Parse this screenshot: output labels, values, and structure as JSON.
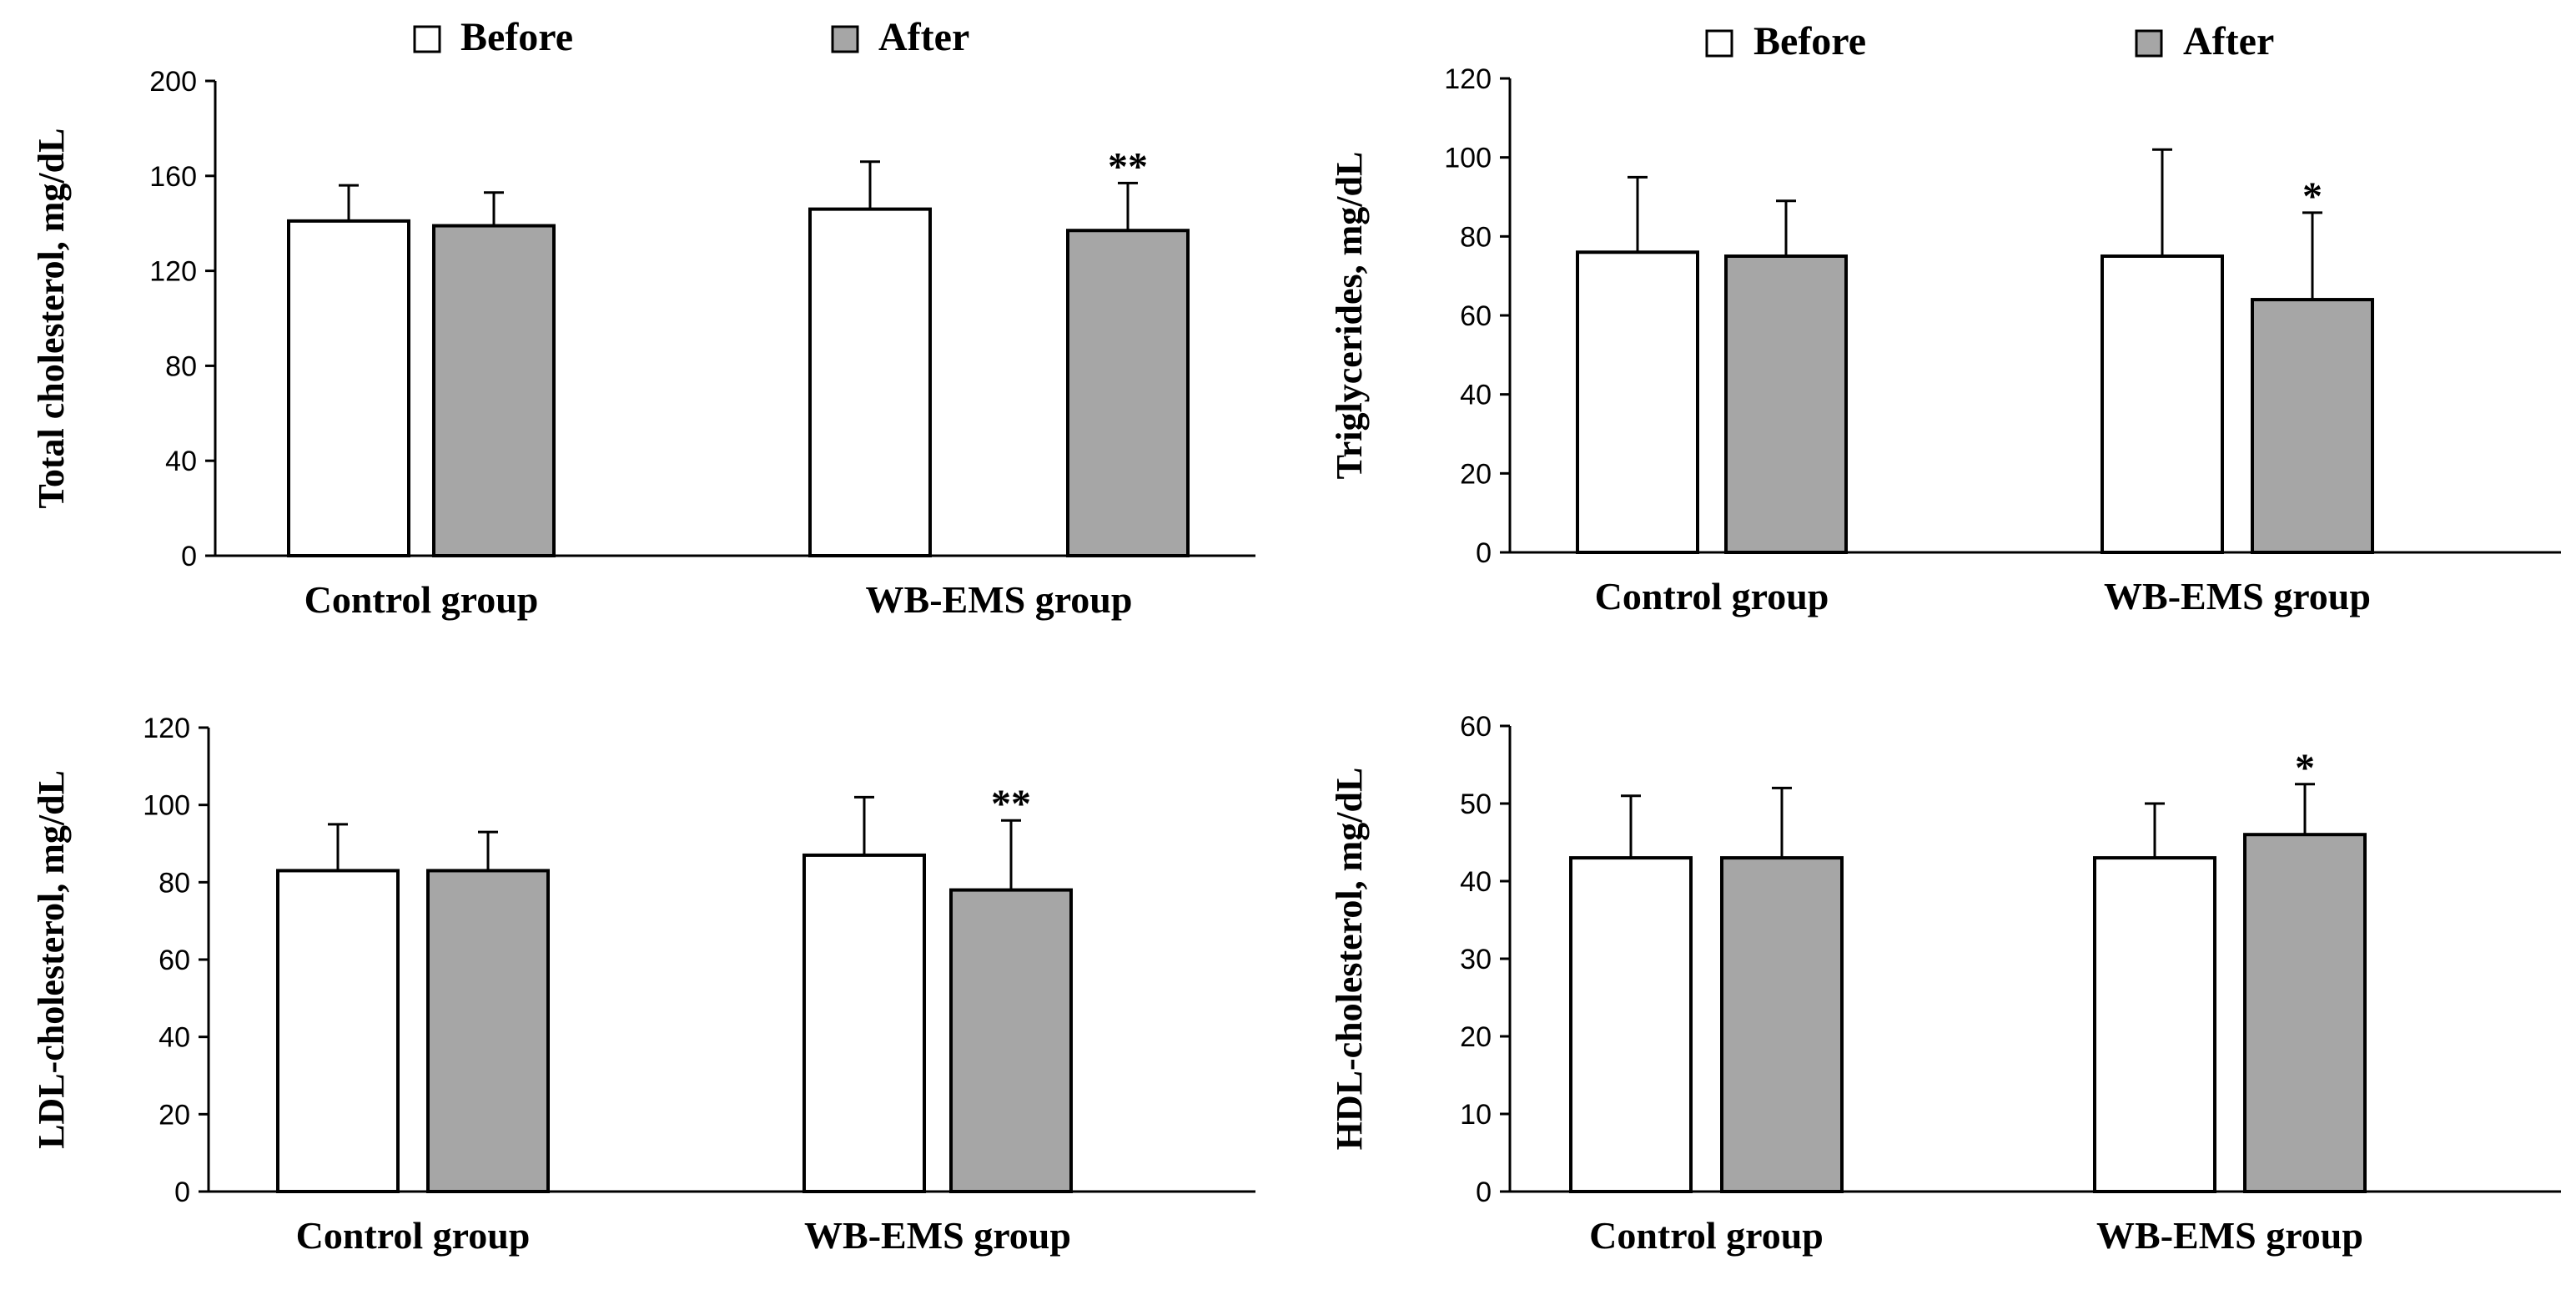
{
  "chart_data": [
    {
      "type": "bar",
      "id": "total-cholesterol",
      "ylabel": "Total cholesterol, mg/dL",
      "categories": [
        "Control group",
        "WB-EMS group"
      ],
      "ylim": [
        0,
        200
      ],
      "ytick_step": 40,
      "ytick_labels": [
        "0",
        "40",
        "80",
        "120",
        "160",
        "200"
      ],
      "legend": [
        "Before",
        "After"
      ],
      "series": [
        {
          "name": "Before",
          "values": [
            141,
            146
          ],
          "errors": [
            15,
            20
          ],
          "color": "#ffffff"
        },
        {
          "name": "After",
          "values": [
            139,
            137
          ],
          "errors": [
            14,
            20
          ],
          "color": "#a6a6a6"
        }
      ],
      "significance": [
        {
          "category": "WB-EMS group",
          "series": "After",
          "text": "**"
        }
      ]
    },
    {
      "type": "bar",
      "id": "triglycerides",
      "ylabel": "Triglycerides, mg/dL",
      "categories": [
        "Control group",
        "WB-EMS group"
      ],
      "ylim": [
        0,
        120
      ],
      "ytick_step": 20,
      "ytick_labels": [
        "0",
        "20",
        "40",
        "60",
        "80",
        "100",
        "120"
      ],
      "legend": [
        "Before",
        "After"
      ],
      "series": [
        {
          "name": "Before",
          "values": [
            76,
            75
          ],
          "errors": [
            19,
            27
          ],
          "color": "#ffffff"
        },
        {
          "name": "After",
          "values": [
            75,
            64
          ],
          "errors": [
            14,
            22
          ],
          "color": "#a6a6a6"
        }
      ],
      "significance": [
        {
          "category": "WB-EMS group",
          "series": "After",
          "text": "*"
        }
      ]
    },
    {
      "type": "bar",
      "id": "ldl-cholesterol",
      "ylabel": "LDL-cholesterol, mg/dL",
      "categories": [
        "Control group",
        "WB-EMS group"
      ],
      "ylim": [
        0,
        120
      ],
      "ytick_step": 20,
      "ytick_labels": [
        "0",
        "20",
        "40",
        "60",
        "80",
        "100",
        "120"
      ],
      "legend": [],
      "series": [
        {
          "name": "Before",
          "values": [
            83,
            87
          ],
          "errors": [
            12,
            15
          ],
          "color": "#ffffff"
        },
        {
          "name": "After",
          "values": [
            83,
            78
          ],
          "errors": [
            10,
            18
          ],
          "color": "#a6a6a6"
        }
      ],
      "significance": [
        {
          "category": "WB-EMS group",
          "series": "After",
          "text": "**"
        }
      ]
    },
    {
      "type": "bar",
      "id": "hdl-cholesterol",
      "ylabel": "HDL-cholesterol, mg/dL",
      "categories": [
        "Control group",
        "WB-EMS group"
      ],
      "ylim": [
        0,
        60
      ],
      "ytick_step": 10,
      "ytick_labels": [
        "0",
        "10",
        "20",
        "30",
        "40",
        "50",
        "60"
      ],
      "legend": [],
      "series": [
        {
          "name": "Before",
          "values": [
            43,
            43
          ],
          "errors": [
            8,
            7
          ],
          "color": "#ffffff"
        },
        {
          "name": "After",
          "values": [
            43,
            46
          ],
          "errors": [
            9,
            6.5
          ],
          "color": "#a6a6a6"
        }
      ],
      "significance": [
        {
          "category": "WB-EMS group",
          "series": "After",
          "text": "*"
        }
      ]
    }
  ]
}
